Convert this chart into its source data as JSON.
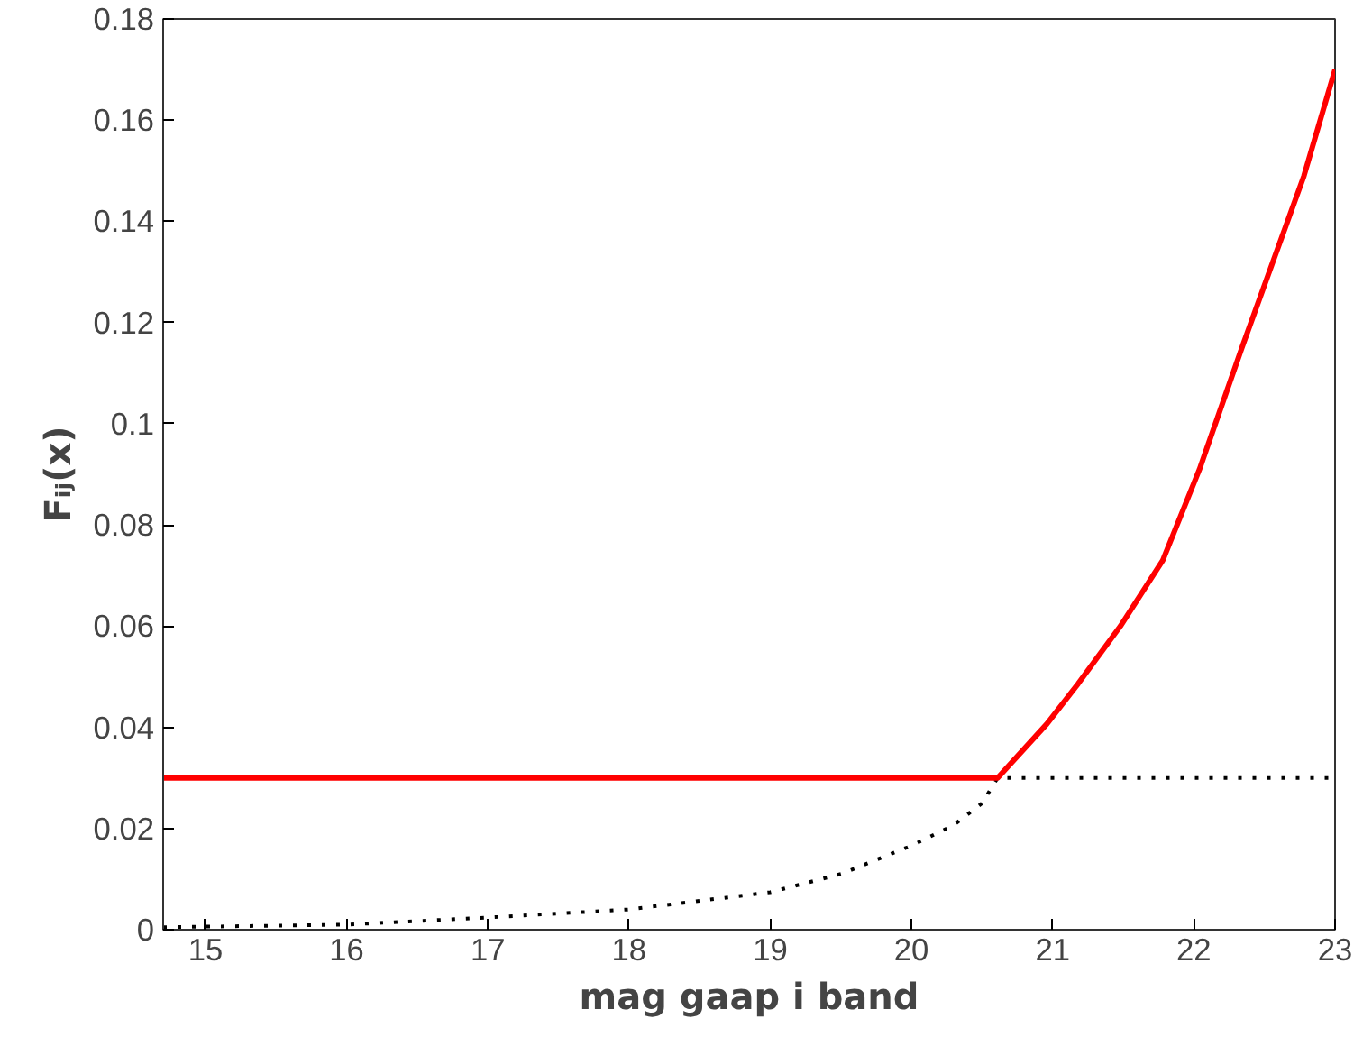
{
  "chart_data": {
    "type": "line",
    "xlabel": "mag gaap i band",
    "ylabel": "Fᵢⱼ(x)",
    "xlim": [
      14.7,
      23
    ],
    "ylim": [
      0,
      0.18
    ],
    "xticks": [
      15,
      16,
      17,
      18,
      19,
      20,
      21,
      22,
      23
    ],
    "yticks": [
      0,
      0.02,
      0.04,
      0.06,
      0.08,
      0.1,
      0.12,
      0.14,
      0.16,
      0.18
    ],
    "grid": false,
    "series": [
      {
        "color": "#000000",
        "line_style": "dotted",
        "x": [
          14.7,
          15,
          16,
          17,
          18,
          19,
          19.5,
          20,
          20.3,
          20.5,
          20.61,
          23
        ],
        "values": [
          0.0005,
          0.0006,
          0.001,
          0.0024,
          0.004,
          0.0074,
          0.011,
          0.0166,
          0.0207,
          0.025,
          0.03,
          0.03
        ]
      },
      {
        "color": "#ff0000",
        "line_style": "solid",
        "x": [
          14.7,
          20.61,
          20.96,
          21.18,
          21.48,
          21.78,
          22.04,
          22.34,
          22.56,
          22.78,
          23
        ],
        "values": [
          0.03,
          0.03,
          0.0407,
          0.0486,
          0.06,
          0.073,
          0.091,
          0.115,
          0.132,
          0.149,
          0.17
        ]
      }
    ]
  }
}
